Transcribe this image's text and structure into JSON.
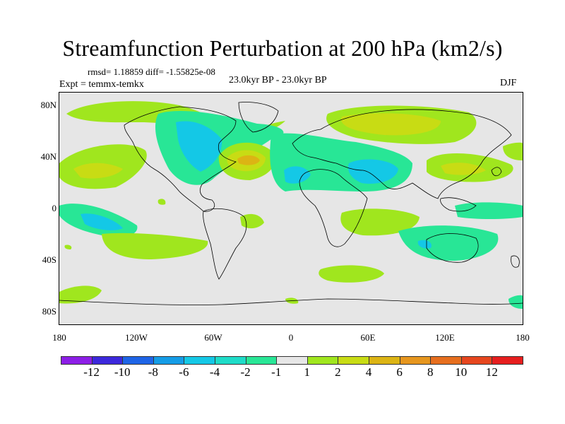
{
  "title": "Streamfunction Perturbation at 200 hPa (km2/s)",
  "stats": "rmsd= 1.18859 diff= -1.55825e-08",
  "experiment": "Expt = temmx-temkx",
  "period": "23.0kyr BP - 23.0kyr BP",
  "season": "DJF",
  "lat_labels": [
    "80N",
    "40N",
    "0",
    "40S",
    "80S"
  ],
  "lon_labels": [
    "180",
    "120W",
    "60W",
    "0",
    "60E",
    "120E",
    "180"
  ],
  "colorbar": {
    "colors": [
      "#8c1ee6",
      "#3c28dc",
      "#1e64e6",
      "#149ce6",
      "#14c8e6",
      "#1edcc8",
      "#28e696",
      "#e6e6e6",
      "#a0e61e",
      "#c8dc14",
      "#dcb414",
      "#e6961e",
      "#e66e1e",
      "#e6461e",
      "#e61e1e"
    ],
    "labels": [
      "-12",
      "-10",
      "-8",
      "-6",
      "-4",
      "-2",
      "-1",
      "1",
      "2",
      "4",
      "6",
      "8",
      "10",
      "12"
    ]
  }
}
